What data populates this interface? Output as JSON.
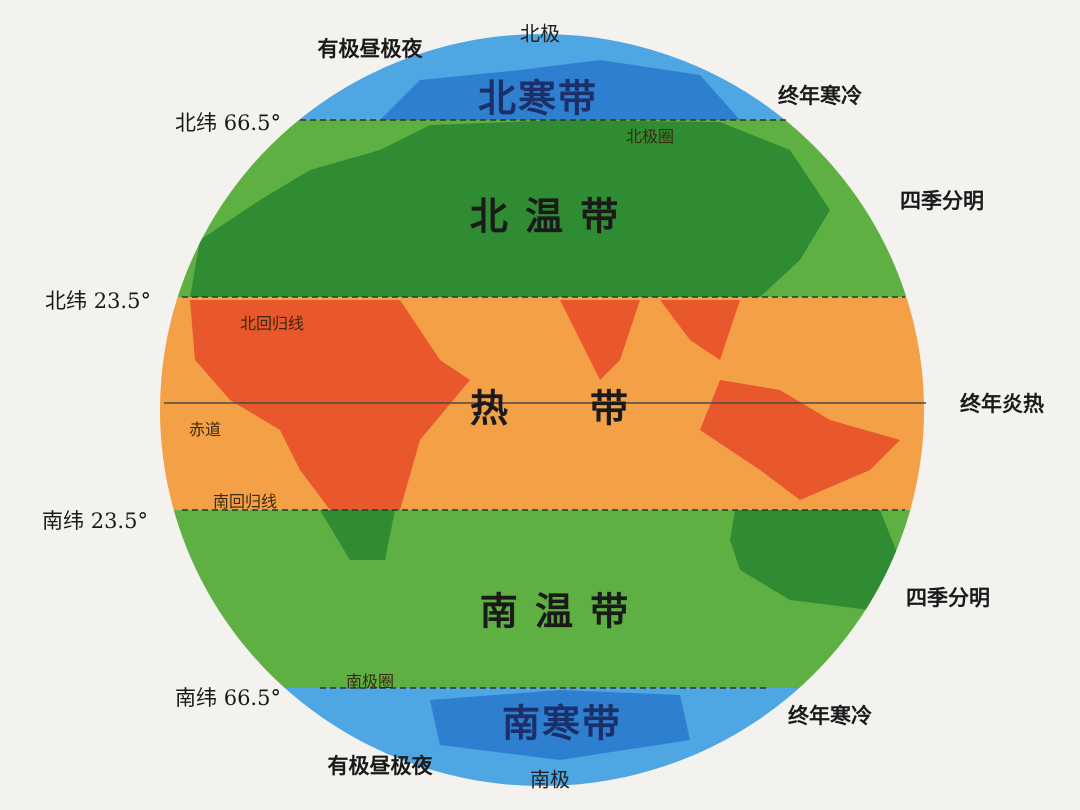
{
  "colors": {
    "frigid": "#4ea6e3",
    "frigid_land": "#2f7fd0",
    "temperate": "#5fb042",
    "temperate_land": "#2f8c33",
    "tropical": "#f3a046",
    "tropical_land": "#e9572c",
    "background": "#f4f2ef"
  },
  "poles": {
    "north": "北极",
    "south": "南极"
  },
  "zones": {
    "north_frigid": {
      "name": "北寒带",
      "feature": "终年寒冷",
      "daylight": "有极昼极夜"
    },
    "north_temperate": {
      "name": "北 温 带",
      "feature": "四季分明"
    },
    "tropical": {
      "name": "热　　带",
      "feature": "终年炎热"
    },
    "south_temperate": {
      "name": "南 温 带",
      "feature": "四季分明"
    },
    "south_frigid": {
      "name": "南寒带",
      "feature": "终年寒冷",
      "daylight": "有极昼极夜"
    }
  },
  "latitudes": {
    "n66": "北纬  66.5°",
    "n23": "北纬  23.5°",
    "s23": "南纬  23.5°",
    "s66": "南纬  66.5°"
  },
  "lines": {
    "arctic_circle": "北极圈",
    "tropic_cancer": "北回归线",
    "equator": "赤道",
    "tropic_capricorn": "南回归线",
    "antarctic_circle": "南极圈"
  }
}
